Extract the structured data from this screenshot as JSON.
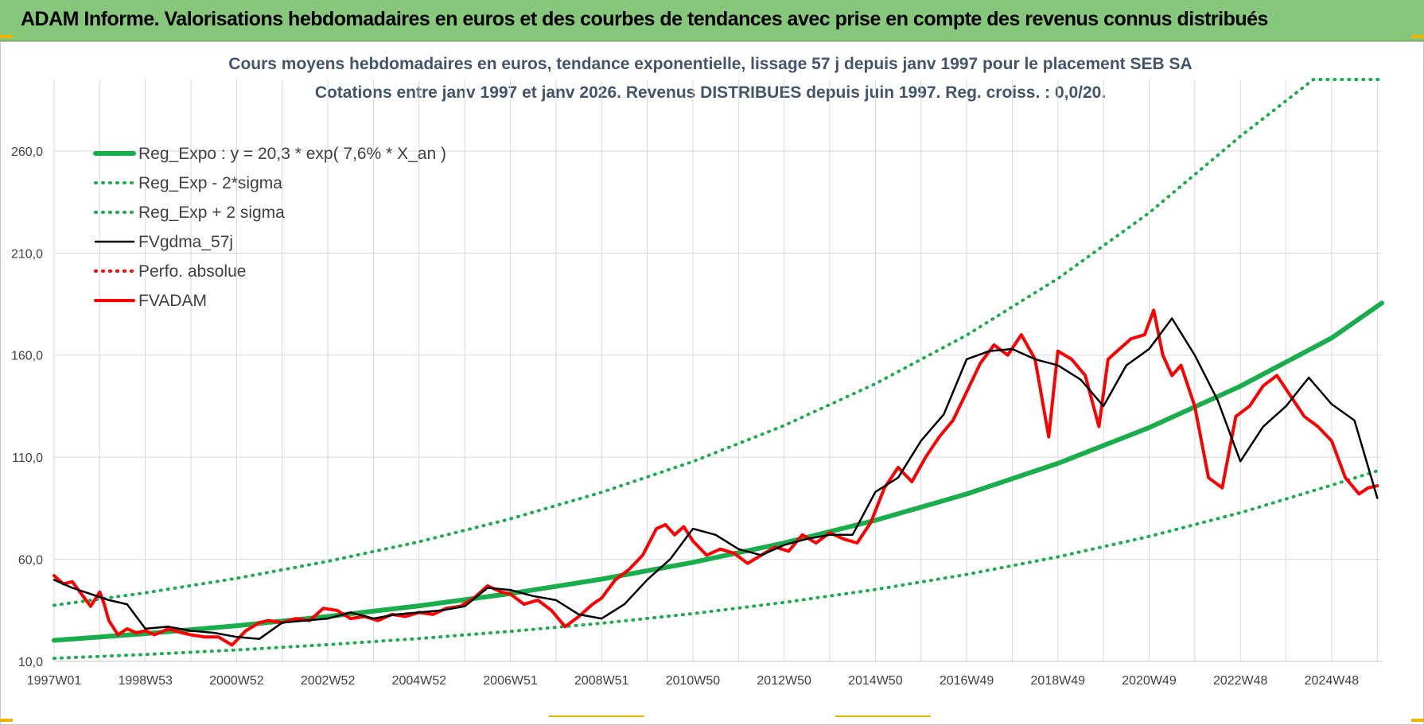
{
  "banner": {
    "title": "ADAM Informe. Valorisations hebdomadaires en euros et des courbes de tendances avec prise en compte des revenus connus distribués"
  },
  "colors": {
    "banner_bg": "#86c77b",
    "trend": "#1aad4b",
    "price": "#ff0000",
    "smooth": "#000000",
    "grid": "#d9d9d9"
  },
  "chart_data": {
    "type": "line",
    "title": "Cours moyens hebdomadaires en euros, tendance exponentielle, lissage 57 j depuis janv 1997 pour le placement SEB SA",
    "subtitle": "Cotations entre janv 1997 et janv 2026. Revenus DISTRIBUES depuis juin 1997. Reg. croiss. : 0,0/20.",
    "xlabel": "",
    "ylabel": "",
    "xlim": [
      1997.0,
      2026.1
    ],
    "ylim": [
      10,
      295
    ],
    "yticks": [
      10,
      60,
      110,
      160,
      210,
      260
    ],
    "ytick_labels": [
      "10,0",
      "60,0",
      "110,0",
      "160,0",
      "210,0",
      "260,0"
    ],
    "xticks": [
      1997.0,
      1999.0,
      2001.0,
      2003.0,
      2005.0,
      2007.0,
      2009.0,
      2011.0,
      2013.0,
      2015.0,
      2017.0,
      2019.0,
      2021.0,
      2023.0,
      2025.0
    ],
    "xtick_labels": [
      "1997W01",
      "1998W53",
      "2000W52",
      "2002W52",
      "2004W52",
      "2006W51",
      "2008W51",
      "2010W50",
      "2012W50",
      "2014W50",
      "2016W49",
      "2018W49",
      "2020W49",
      "2022W48",
      "2024W48"
    ],
    "grid": true,
    "legend_position": "top-left",
    "series": [
      {
        "name": "Reg_Expo : y = 20,3 * exp( 7,6% *  X_an )",
        "style": "solid-thick",
        "color": "#1aad4b",
        "x": [
          1997.0,
          1999.0,
          2001.0,
          2003.0,
          2005.0,
          2007.0,
          2009.0,
          2011.0,
          2013.0,
          2015.0,
          2017.0,
          2019.0,
          2021.0,
          2023.0,
          2025.0,
          2026.1
        ],
        "y": [
          20.3,
          23.6,
          27.5,
          32.0,
          37.2,
          43.2,
          50.3,
          58.5,
          68.0,
          79.1,
          92.0,
          107.0,
          124.5,
          144.8,
          168.4,
          185.5
        ]
      },
      {
        "name": "Reg_Exp - 2*sigma",
        "style": "dotted",
        "color": "#1aad4b",
        "x": [
          1997.0,
          1999.0,
          2001.0,
          2003.0,
          2005.0,
          2007.0,
          2009.0,
          2011.0,
          2013.0,
          2015.0,
          2017.0,
          2019.0,
          2021.0,
          2023.0,
          2025.0,
          2026.1
        ],
        "y": [
          11.5,
          13.4,
          15.6,
          18.2,
          21.2,
          24.7,
          28.7,
          33.4,
          38.9,
          45.2,
          52.6,
          61.2,
          71.2,
          82.8,
          96.3,
          104.0
        ]
      },
      {
        "name": "Reg_Exp + 2 sigma",
        "style": "dotted",
        "color": "#1aad4b",
        "x": [
          1997.0,
          1999.0,
          2001.0,
          2003.0,
          2005.0,
          2007.0,
          2009.0,
          2011.0,
          2013.0,
          2015.0,
          2017.0,
          2019.0,
          2021.0,
          2023.0,
          2024.6,
          2026.1
        ],
        "y": [
          37.5,
          43.6,
          50.7,
          59.0,
          68.6,
          79.8,
          92.8,
          107.9,
          125.5,
          146.0,
          169.8,
          197.5,
          229.7,
          267.2,
          295.0,
          295.0
        ]
      },
      {
        "name": "FVgdma_57j",
        "style": "solid",
        "color": "#000000",
        "x": [
          1997.0,
          1997.4,
          1997.8,
          1998.2,
          1998.6,
          1999.0,
          1999.5,
          2000.0,
          2000.5,
          2001.0,
          2001.5,
          2002.0,
          2002.5,
          2003.0,
          2003.5,
          2004.0,
          2004.5,
          2005.0,
          2005.5,
          2006.0,
          2006.5,
          2007.0,
          2007.5,
          2008.0,
          2008.5,
          2009.0,
          2009.5,
          2010.0,
          2010.5,
          2011.0,
          2011.5,
          2012.0,
          2012.5,
          2013.0,
          2013.5,
          2014.0,
          2014.5,
          2015.0,
          2015.5,
          2016.0,
          2016.5,
          2017.0,
          2017.5,
          2018.0,
          2018.5,
          2019.0,
          2019.5,
          2020.0,
          2020.5,
          2021.0,
          2021.5,
          2022.0,
          2022.5,
          2023.0,
          2023.5,
          2024.0,
          2024.5,
          2025.0,
          2025.5,
          2026.0
        ],
        "y": [
          50,
          46,
          43,
          40,
          38,
          26,
          27,
          25,
          24,
          22,
          21,
          29,
          30,
          31,
          34,
          31,
          33,
          34,
          35,
          37,
          46,
          45,
          42,
          40,
          33,
          31,
          38,
          50,
          60,
          75,
          72,
          65,
          62,
          67,
          70,
          72,
          72,
          93,
          100,
          118,
          131,
          158,
          162,
          163,
          158,
          155,
          148,
          135,
          155,
          163,
          178,
          160,
          138,
          108,
          125,
          135,
          149,
          136,
          128,
          90
        ]
      },
      {
        "name": "Perfo. absolue",
        "style": "dotted",
        "color": "#ff0000",
        "x": [],
        "y": []
      },
      {
        "name": "FVADAM",
        "style": "solid-thick",
        "color": "#ff0000",
        "x": [
          1997.0,
          1997.2,
          1997.4,
          1997.6,
          1997.8,
          1998.0,
          1998.1,
          1998.2,
          1998.4,
          1998.6,
          1998.8,
          1999.0,
          1999.2,
          1999.5,
          1999.8,
          2000.0,
          2000.3,
          2000.6,
          2000.9,
          2001.2,
          2001.5,
          2001.7,
          2002.0,
          2002.3,
          2002.6,
          2002.9,
          2003.2,
          2003.5,
          2003.8,
          2004.1,
          2004.4,
          2004.7,
          2005.0,
          2005.3,
          2005.6,
          2005.9,
          2006.2,
          2006.5,
          2006.8,
          2007.0,
          2007.3,
          2007.6,
          2007.9,
          2008.2,
          2008.5,
          2008.8,
          2009.0,
          2009.3,
          2009.6,
          2009.9,
          2010.2,
          2010.4,
          2010.6,
          2010.8,
          2011.0,
          2011.3,
          2011.6,
          2011.9,
          2012.2,
          2012.5,
          2012.8,
          2013.1,
          2013.4,
          2013.7,
          2014.0,
          2014.3,
          2014.6,
          2014.9,
          2015.2,
          2015.5,
          2015.8,
          2016.1,
          2016.4,
          2016.7,
          2017.0,
          2017.3,
          2017.6,
          2017.9,
          2018.2,
          2018.5,
          2018.8,
          2019.0,
          2019.3,
          2019.6,
          2019.9,
          2020.1,
          2020.3,
          2020.6,
          2020.9,
          2021.1,
          2021.3,
          2021.5,
          2021.7,
          2022.0,
          2022.3,
          2022.6,
          2022.9,
          2023.2,
          2023.5,
          2023.8,
          2024.1,
          2024.4,
          2024.7,
          2025.0,
          2025.3,
          2025.6,
          2025.8,
          2026.0
        ],
        "y": [
          52,
          48,
          49,
          43,
          37,
          44,
          38,
          30,
          23,
          26,
          24,
          25,
          23,
          26,
          24,
          23,
          22,
          22,
          18,
          25,
          29,
          30,
          29,
          31,
          30,
          36,
          35,
          31,
          32,
          30,
          33,
          32,
          34,
          33,
          36,
          37,
          41,
          47,
          44,
          43,
          38,
          40,
          35,
          27,
          32,
          38,
          41,
          50,
          55,
          62,
          75,
          77,
          72,
          76,
          69,
          62,
          65,
          63,
          58,
          62,
          66,
          64,
          72,
          68,
          73,
          70,
          68,
          78,
          95,
          105,
          98,
          110,
          120,
          128,
          142,
          156,
          165,
          160,
          170,
          158,
          120,
          162,
          158,
          150,
          125,
          158,
          162,
          168,
          170,
          182,
          160,
          150,
          155,
          135,
          100,
          95,
          130,
          135,
          145,
          150,
          140,
          130,
          125,
          118,
          100,
          92,
          95,
          96
        ]
      }
    ]
  }
}
